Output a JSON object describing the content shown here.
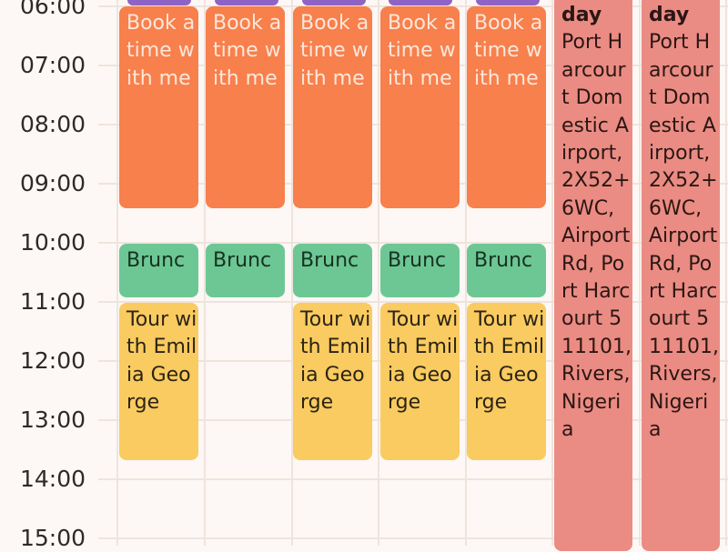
{
  "time_labels": [
    "06:00",
    "07:00",
    "08:00",
    "09:00",
    "10:00",
    "11:00",
    "12:00",
    "13:00",
    "14:00",
    "15:00"
  ],
  "events": {
    "book": "Book a time with me",
    "brunch": "Brunc",
    "tour": "Tour with Emilia George",
    "allday_title": "day",
    "allday_location": "Port Harcourt Domestic Airport, 2X52+6WC, Airport Rd, Port Harcourt 511101, Rivers, Nigeria"
  },
  "colors": {
    "background": "#fdf8f5",
    "book_event": "#f7804d",
    "brunch_event": "#6dc794",
    "tour_event": "#f9cb60",
    "allday_event": "#ea8c83",
    "top_event_strip": "#8e63c6"
  }
}
